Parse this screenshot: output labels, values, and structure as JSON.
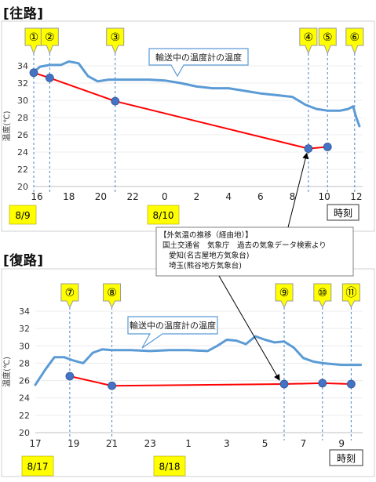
{
  "page": {
    "sections": [
      {
        "heading": "[往路]"
      },
      {
        "heading": "[復路]"
      }
    ],
    "external_note": {
      "lines": [
        "【外気温の推移（経由地）】",
        "国土交通省　気象庁　過去の気象データ検索より",
        "愛知(名古屋地方気象台)",
        "埼玉(熊谷地方気象台)"
      ]
    }
  },
  "chart_data": [
    {
      "type": "line",
      "ylabel": "温度(℃)",
      "ylim": [
        20,
        34
      ],
      "yticks": [
        20,
        22,
        24,
        26,
        28,
        30,
        32,
        34
      ],
      "xlim": [
        15.8,
        36.4
      ],
      "xticks": [
        16,
        18,
        20,
        22,
        24,
        26,
        28,
        30,
        32,
        34,
        36
      ],
      "xtick_labels": [
        "16",
        "18",
        "20",
        "22",
        "0",
        "2",
        "4",
        "6",
        "8",
        "10",
        "12"
      ],
      "x_axis_unit_label": "時刻",
      "date_labels": [
        {
          "text": "8/9",
          "x": 15.8
        },
        {
          "text": "8/10",
          "x": 24.0
        }
      ],
      "colors": {
        "transport": "#5b9bd5",
        "outside": "#ff0000",
        "point": "#4472c4",
        "callout_bg": "#ffff00",
        "date_bg": "#ffff00"
      },
      "callout": {
        "text": "輸送中の温度計の温度"
      },
      "markers": [
        {
          "label": "①",
          "x": 15.8
        },
        {
          "label": "②",
          "x": 16.8
        },
        {
          "label": "③",
          "x": 20.9
        },
        {
          "label": "④",
          "x": 33.0
        },
        {
          "label": "⑤",
          "x": 34.2
        },
        {
          "label": "⑥",
          "x": 35.9
        }
      ],
      "series": [
        {
          "name": "輸送中の温度計の温度",
          "x": [
            15.8,
            16.2,
            16.8,
            17.5,
            18.0,
            18.6,
            19.2,
            19.8,
            20.5,
            21.5,
            23.0,
            24.0,
            25.0,
            26.0,
            27.0,
            28.0,
            29.0,
            30.0,
            31.0,
            32.0,
            32.8,
            33.5,
            34.2,
            35.0,
            35.5,
            35.8,
            36.0,
            36.2
          ],
          "y": [
            33.3,
            33.9,
            34.1,
            34.1,
            34.5,
            34.3,
            32.8,
            32.2,
            32.4,
            32.4,
            32.4,
            32.3,
            32.0,
            31.6,
            31.4,
            31.4,
            31.1,
            30.8,
            30.6,
            30.4,
            29.5,
            29.0,
            28.8,
            28.8,
            29.0,
            29.3,
            28.0,
            27.0
          ]
        },
        {
          "name": "外気温",
          "x": [
            15.8,
            16.8,
            20.9,
            33.0,
            34.2
          ],
          "y": [
            33.2,
            32.6,
            29.9,
            24.4,
            24.6
          ]
        }
      ]
    },
    {
      "type": "line",
      "ylabel": "温度(℃)",
      "ylim": [
        20,
        34
      ],
      "yticks": [
        20,
        22,
        24,
        26,
        28,
        30,
        32,
        34
      ],
      "xlim": [
        17,
        34.1
      ],
      "xticks": [
        17,
        19,
        21,
        23,
        25,
        27,
        29,
        31,
        33
      ],
      "xtick_labels": [
        "17",
        "19",
        "21",
        "23",
        "1",
        "3",
        "5",
        "7",
        "9"
      ],
      "x_axis_unit_label": "時刻",
      "date_labels": [
        {
          "text": "8/17",
          "x": 17.0
        },
        {
          "text": "8/18",
          "x": 24.4
        }
      ],
      "colors": {
        "transport": "#5b9bd5",
        "outside": "#ff0000",
        "point": "#4472c4",
        "callout_bg": "#ffff00",
        "date_bg": "#ffff00"
      },
      "callout": {
        "text": "輸送中の温度計の温度"
      },
      "markers": [
        {
          "label": "⑦",
          "x": 18.8
        },
        {
          "label": "⑧",
          "x": 21.0
        },
        {
          "label": "⑨",
          "x": 30.0
        },
        {
          "label": "⑩",
          "x": 32.0
        },
        {
          "label": "⑪",
          "x": 33.5
        }
      ],
      "series": [
        {
          "name": "輸送中の温度計の温度",
          "x": [
            17.0,
            17.5,
            18.0,
            18.5,
            19.0,
            19.5,
            20.0,
            20.5,
            21.0,
            22.0,
            23.0,
            24.0,
            25.0,
            26.0,
            26.5,
            27.0,
            27.5,
            28.0,
            28.5,
            29.0,
            29.5,
            30.0,
            30.5,
            31.0,
            31.5,
            32.0,
            32.5,
            33.0,
            34.0
          ],
          "y": [
            25.5,
            27.2,
            28.7,
            28.7,
            28.3,
            28.0,
            29.2,
            29.6,
            29.5,
            29.5,
            29.4,
            29.5,
            29.5,
            29.4,
            30.0,
            30.7,
            30.6,
            30.2,
            31.1,
            30.7,
            30.4,
            30.5,
            29.8,
            28.6,
            28.2,
            28.0,
            27.9,
            27.8,
            27.8
          ]
        },
        {
          "name": "外気温",
          "x": [
            18.8,
            21.0,
            30.0,
            32.0,
            33.5
          ],
          "y": [
            26.5,
            25.4,
            25.6,
            25.7,
            25.6
          ]
        }
      ]
    }
  ]
}
